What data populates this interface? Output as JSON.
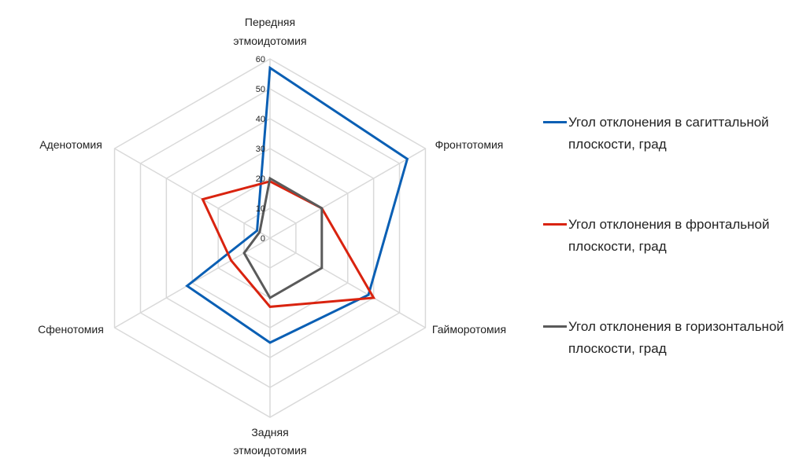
{
  "chart_data": {
    "type": "radar",
    "categories": [
      "Передняя этмоидотомия",
      "Фронтотомия",
      "Гайморотомия",
      "Задняя этмоидотомия",
      "Сфенотомия",
      "Аденотомия"
    ],
    "rlim": [
      0,
      60
    ],
    "ticks": [
      "0",
      "10",
      "20",
      "30",
      "40",
      "50",
      "60"
    ],
    "grid": true,
    "legend_position": "right",
    "series": [
      {
        "name": "Угол отклонения в сагиттальной плоскости, град",
        "color": "#0a5fb4",
        "values": [
          57,
          53,
          38,
          35,
          32,
          5
        ]
      },
      {
        "name": "Угол отклонения в фронтальной плоскости, град",
        "color": "#d9230f",
        "values": [
          19,
          20,
          40,
          23,
          15,
          26
        ]
      },
      {
        "name": "Угол отклонения в горизонтальной плоскости, град",
        "color": "#5a5a5a",
        "values": [
          20,
          20,
          20,
          20,
          10,
          4
        ]
      }
    ]
  }
}
